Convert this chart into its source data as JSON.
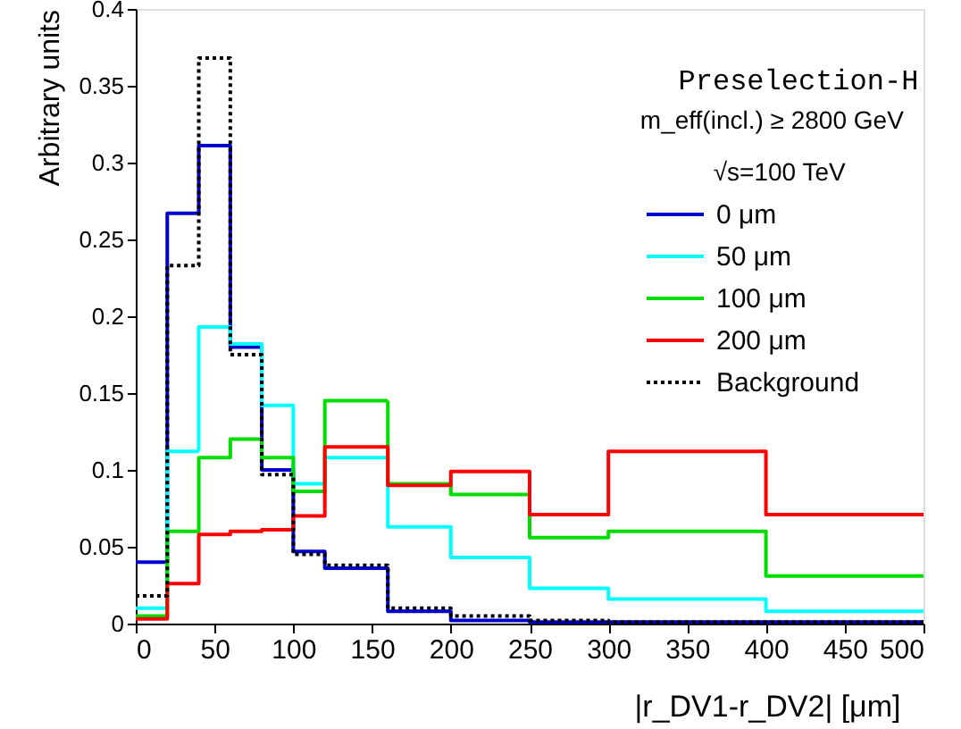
{
  "chart_data": {
    "type": "histogram",
    "xlabel": "|r_DV1-r_DV2| [μm]",
    "ylabel": "Arbitrary units",
    "annotations": [
      "Preselection-H",
      "m_eff(incl.) ≥ 2800 GeV",
      "√s=100 TeV"
    ],
    "bins": [
      0,
      20,
      40,
      60,
      80,
      100,
      120,
      160,
      200,
      250,
      300,
      400,
      500
    ],
    "series": [
      {
        "name": "0 μm",
        "color": "#0000cc",
        "values": [
          0.04,
          0.267,
          0.311,
          0.18,
          0.1,
          0.047,
          0.036,
          0.008,
          0.002,
          0.001,
          0.001,
          0.001
        ]
      },
      {
        "name": "50 μm",
        "color": "#00ffff",
        "values": [
          0.01,
          0.112,
          0.193,
          0.182,
          0.142,
          0.091,
          0.108,
          0.063,
          0.043,
          0.023,
          0.016,
          0.008
        ]
      },
      {
        "name": "100 μm",
        "color": "#00dd00",
        "values": [
          0.005,
          0.06,
          0.108,
          0.12,
          0.108,
          0.086,
          0.145,
          0.091,
          0.084,
          0.056,
          0.06,
          0.031
        ]
      },
      {
        "name": "200 μm",
        "color": "#ff0000",
        "values": [
          0.003,
          0.026,
          0.058,
          0.06,
          0.061,
          0.07,
          0.115,
          0.09,
          0.099,
          0.071,
          0.112,
          0.071
        ]
      },
      {
        "name": "Background",
        "color": "#000000",
        "line_style": "dotted",
        "values": [
          0.018,
          0.233,
          0.368,
          0.175,
          0.097,
          0.045,
          0.038,
          0.01,
          0.005,
          0.002,
          0.001,
          0.001
        ]
      }
    ],
    "xlim": [
      0,
      500
    ],
    "ylim": [
      0,
      0.4
    ],
    "xticks": [
      0,
      50,
      100,
      150,
      200,
      250,
      300,
      350,
      400,
      450,
      500
    ],
    "yticks": [
      0,
      0.05,
      0.1,
      0.15,
      0.2,
      0.25,
      0.3,
      0.35,
      0.4
    ],
    "legend": "top right",
    "grid": false
  }
}
